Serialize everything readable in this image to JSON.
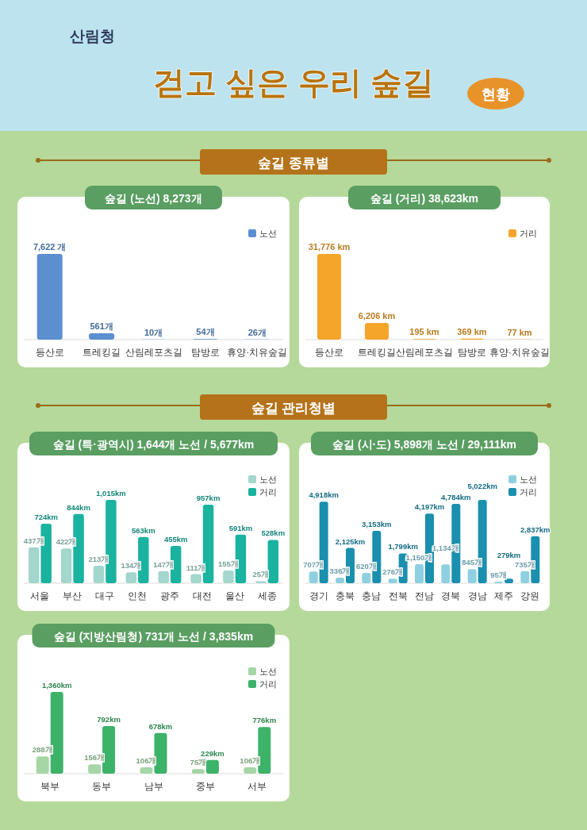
{
  "chart_data": [
    {
      "type": "bar",
      "title": "숲길 (노선) 8,273개",
      "annotations": [
        "산림청",
        "걷고 싶은 우리 숲길",
        "현황",
        "숲길 종류별"
      ],
      "categories": [
        "등산로",
        "트레킹길",
        "산림레포츠길",
        "탐방로",
        "휴양·치유숲길"
      ],
      "legend": "top right",
      "series": [
        {
          "name": "노선",
          "color": "#5b8fd0",
          "values": [
            7622,
            561,
            10,
            54,
            26
          ],
          "value_labels": [
            "7,622 개",
            "561개",
            "10개",
            "54개",
            "26개"
          ]
        }
      ]
    },
    {
      "type": "bar",
      "title": "숲길 (거리) 38,623km",
      "categories": [
        "등산로",
        "트레킹길",
        "산림레포츠길",
        "탐방로",
        "휴양·치유숲길"
      ],
      "legend": "top right",
      "series": [
        {
          "name": "거리",
          "color": "#f5a52a",
          "values": [
            31776,
            6206,
            195,
            369,
            77
          ],
          "value_labels": [
            "31,776 km",
            "6,206 km",
            "195 km",
            "369 km",
            "77 km"
          ]
        }
      ]
    },
    {
      "type": "bar",
      "title": "숲길 (특·광역시) 1,644개 노선 / 5,677km",
      "annotations": [
        "숲길 관리청별"
      ],
      "categories": [
        "서울",
        "부산",
        "대구",
        "인천",
        "광주",
        "대전",
        "울산",
        "세종"
      ],
      "legend": "top right",
      "series": [
        {
          "name": "노선",
          "color": "#a3d6cc",
          "values": [
            437,
            422,
            213,
            134,
            147,
            111,
            155,
            25
          ],
          "value_labels": [
            "437개",
            "422개",
            "213개",
            "134개",
            "147개",
            "111개",
            "155개",
            "25개"
          ]
        },
        {
          "name": "거리",
          "color": "#1ab3a0",
          "values": [
            724,
            844,
            1015,
            563,
            455,
            957,
            591,
            528
          ],
          "value_labels": [
            "724km",
            "844km",
            "1,015km",
            "563km",
            "455km",
            "957km",
            "591km",
            "528km"
          ]
        }
      ]
    },
    {
      "type": "bar",
      "title": "숲길 (시·도) 5,898개 노선 / 29,111km",
      "categories": [
        "경기",
        "충북",
        "충남",
        "전북",
        "전남",
        "경북",
        "경남",
        "제주",
        "강원"
      ],
      "legend": "top right",
      "series": [
        {
          "name": "노선",
          "color": "#8fd0e0",
          "values": [
            707,
            336,
            620,
            276,
            1150,
            1134,
            845,
            95,
            735
          ],
          "value_labels": [
            "707개",
            "336개",
            "620개",
            "276개",
            "1,150개",
            "1,134개",
            "845개",
            "95개",
            "735개"
          ]
        },
        {
          "name": "거리",
          "color": "#1a8fae",
          "values": [
            4918,
            2125,
            3153,
            1799,
            4197,
            4784,
            5022,
            279,
            2837
          ],
          "value_labels": [
            "4,918km",
            "2,125km",
            "3,153km",
            "1,799km",
            "4,197km",
            "4,784km",
            "5,022km",
            "279km",
            "2,837km"
          ]
        }
      ]
    },
    {
      "type": "bar",
      "title": "숲길 (지방산림청) 731개 노선 / 3,835km",
      "categories": [
        "북부",
        "동부",
        "남부",
        "중부",
        "서부"
      ],
      "legend": "top right",
      "series": [
        {
          "name": "노선",
          "color": "#a6d6a6",
          "values": [
            288,
            156,
            106,
            75,
            106
          ],
          "value_labels": [
            "288개",
            "156개",
            "106개",
            "75개",
            "106개"
          ]
        },
        {
          "name": "거리",
          "color": "#3db36a",
          "values": [
            1360,
            792,
            678,
            229,
            776
          ],
          "value_labels": [
            "1,360km",
            "792km",
            "678km",
            "229km",
            "776km"
          ]
        }
      ]
    }
  ]
}
